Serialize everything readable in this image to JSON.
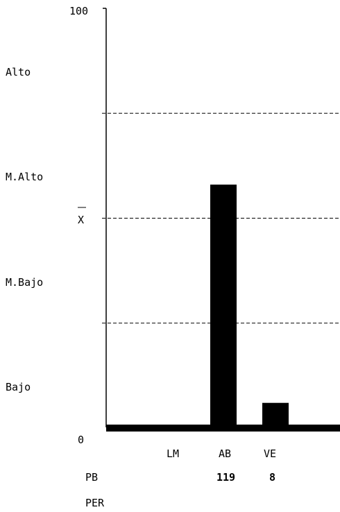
{
  "chart_data": {
    "type": "bar",
    "categories": [
      "LM",
      "AB",
      "VE"
    ],
    "values": [
      0.3,
      58,
      6
    ],
    "ylim": [
      0,
      100
    ],
    "ytick_labels": {
      "top": "100",
      "bottom": "0",
      "mean": "X"
    },
    "levels": [
      "Alto",
      "M.Alto",
      "M.Bajo",
      "Bajo"
    ],
    "dashed_lines_at": [
      25,
      50,
      75
    ],
    "row_labels": {
      "pb": "PB",
      "per": "PER"
    },
    "pb_values": [
      "",
      "119",
      "8"
    ],
    "per_values": [
      "",
      "",
      ""
    ],
    "bar_color": "#000000"
  }
}
